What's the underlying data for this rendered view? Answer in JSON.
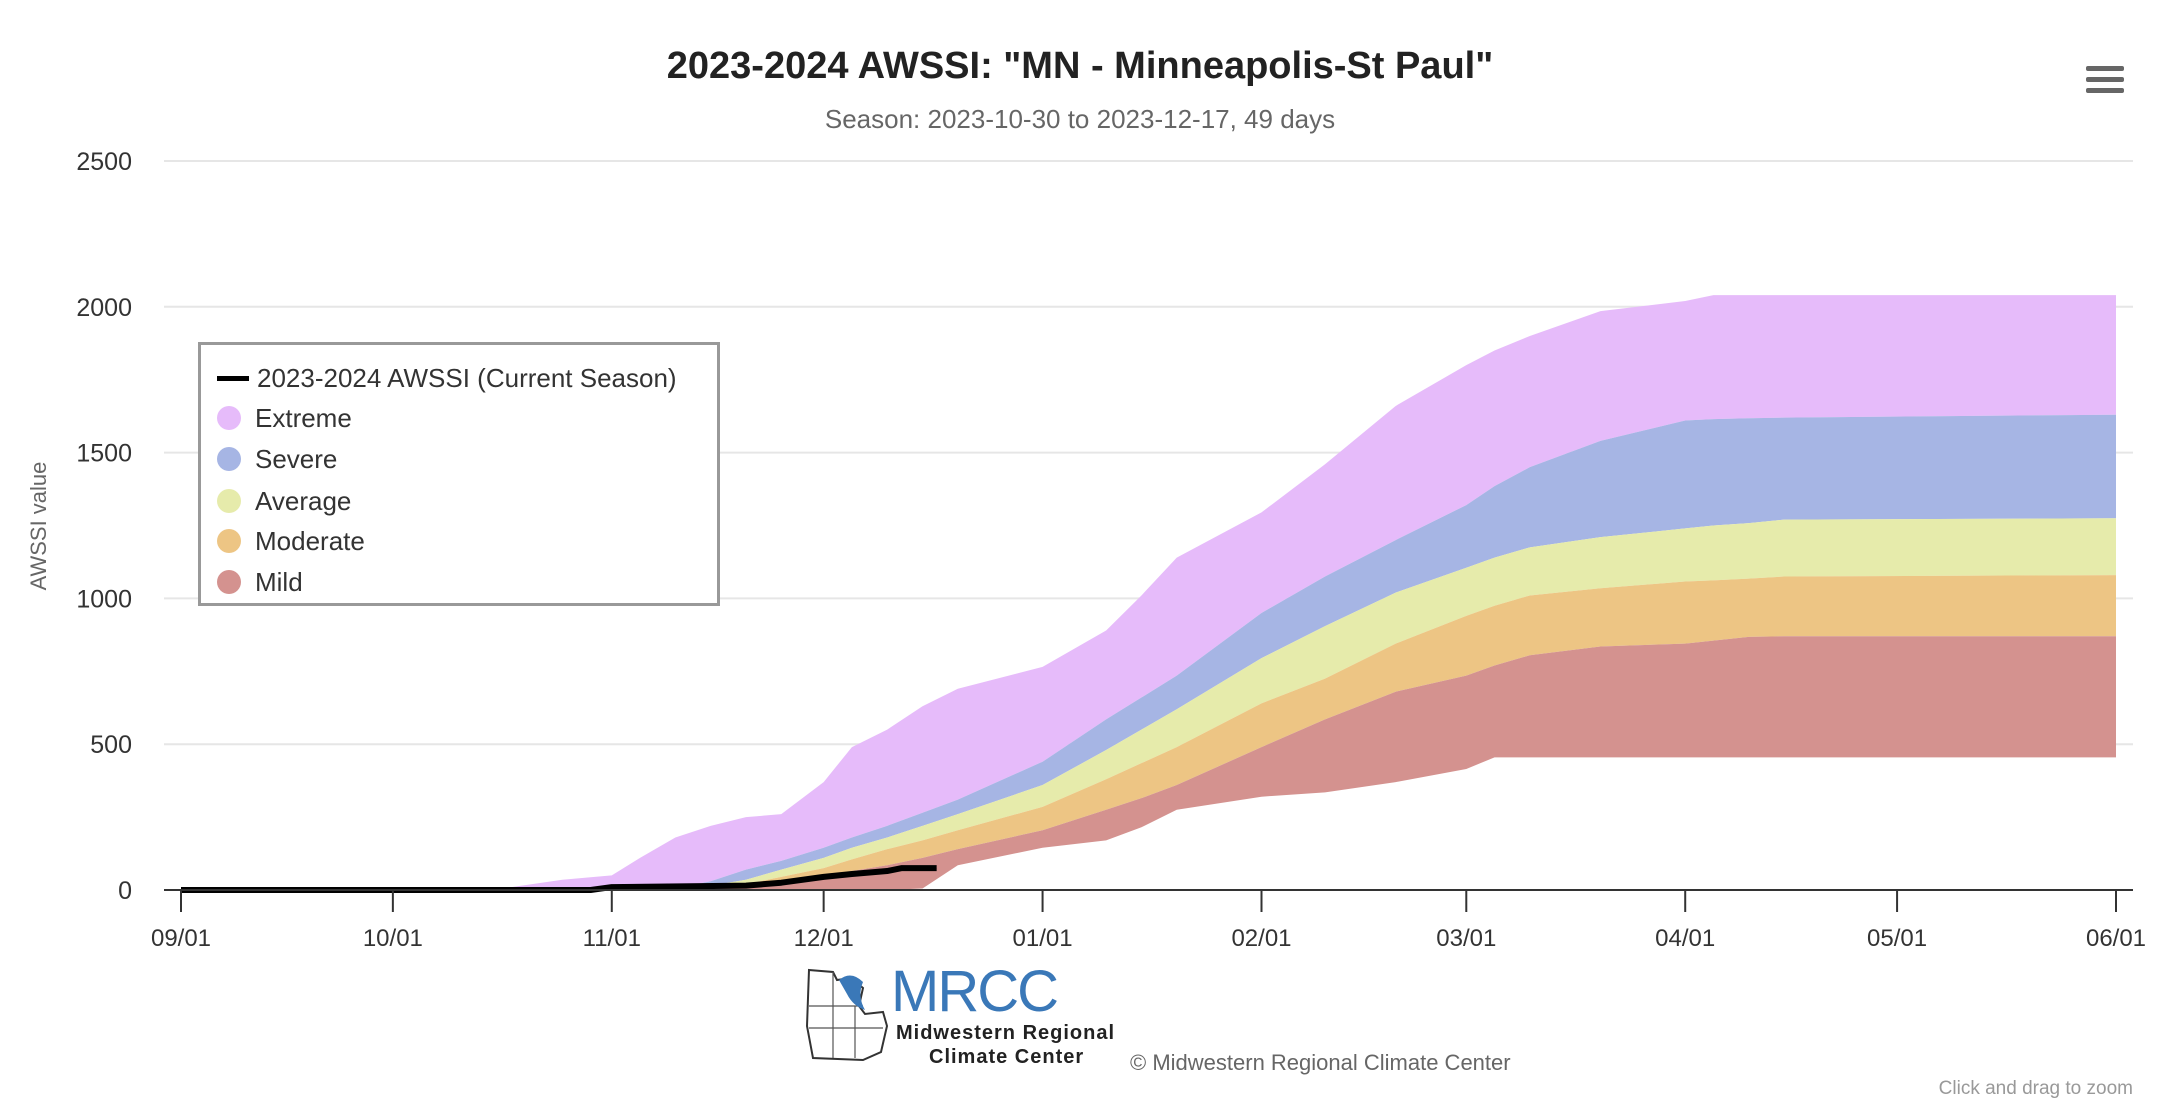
{
  "chart_data": {
    "type": "area",
    "title": "2023-2024 AWSSI: \"MN - Minneapolis-St Paul\"",
    "subtitle": "Season: 2023-10-30 to 2023-12-17, 49 days",
    "xlabel": "",
    "ylabel": "AWSSI value",
    "ylim": [
      0,
      2500
    ],
    "yticks": [
      "0",
      "500",
      "1000",
      "1500",
      "2000",
      "2500"
    ],
    "xlim": [
      "2023-09-01",
      "2024-06-01"
    ],
    "xticks": [
      {
        "date": "2023-09-01",
        "label": "09/01"
      },
      {
        "date": "2023-10-01",
        "label": "10/01"
      },
      {
        "date": "2023-11-01",
        "label": "11/01"
      },
      {
        "date": "2023-12-01",
        "label": "12/01"
      },
      {
        "date": "2024-01-01",
        "label": "01/01"
      },
      {
        "date": "2024-02-01",
        "label": "02/01"
      },
      {
        "date": "2024-03-01",
        "label": "03/01"
      },
      {
        "date": "2024-04-01",
        "label": "04/01"
      },
      {
        "date": "2024-05-01",
        "label": "05/01"
      },
      {
        "date": "2024-06-01",
        "label": "06/01"
      }
    ],
    "grid": true,
    "legend_position": "top-left",
    "band_dates": [
      "2023-09-01",
      "2023-10-15",
      "2023-10-25",
      "2023-11-01",
      "2023-11-05",
      "2023-11-10",
      "2023-11-15",
      "2023-11-20",
      "2023-11-25",
      "2023-12-01",
      "2023-12-05",
      "2023-12-10",
      "2023-12-15",
      "2023-12-20",
      "2024-01-01",
      "2024-01-10",
      "2024-01-15",
      "2024-01-20",
      "2024-02-01",
      "2024-02-10",
      "2024-02-20",
      "2024-03-01",
      "2024-03-05",
      "2024-03-10",
      "2024-03-20",
      "2024-04-01",
      "2024-04-05",
      "2024-04-10",
      "2024-04-15",
      "2024-06-01"
    ],
    "bands": [
      {
        "name": "Extreme",
        "color": "#e6bbfa",
        "low": [
          0,
          0,
          0,
          0,
          2,
          5,
          30,
          70,
          100,
          145,
          180,
          220,
          265,
          310,
          440,
          585,
          660,
          735,
          950,
          1075,
          1200,
          1320,
          1385,
          1450,
          1540,
          1610,
          1615,
          1618,
          1620,
          1630
        ],
        "high": [
          0,
          0,
          35,
          50,
          110,
          180,
          220,
          250,
          260,
          370,
          490,
          550,
          630,
          690,
          765,
          890,
          1010,
          1140,
          1295,
          1460,
          1660,
          1800,
          1850,
          1900,
          1985,
          2020,
          2040,
          2040,
          2040,
          2040
        ]
      },
      {
        "name": "Severe",
        "color": "#a6b5e4",
        "low": [
          0,
          0,
          0,
          0,
          0,
          3,
          15,
          35,
          70,
          110,
          145,
          180,
          220,
          260,
          360,
          480,
          550,
          620,
          795,
          905,
          1020,
          1105,
          1140,
          1175,
          1210,
          1240,
          1250,
          1258,
          1270,
          1275
        ],
        "high": [
          0,
          0,
          0,
          0,
          2,
          5,
          30,
          70,
          100,
          145,
          180,
          220,
          265,
          310,
          440,
          585,
          660,
          735,
          950,
          1075,
          1200,
          1320,
          1385,
          1450,
          1540,
          1610,
          1615,
          1618,
          1620,
          1630
        ]
      },
      {
        "name": "Average",
        "color": "#e6ebab",
        "low": [
          0,
          0,
          0,
          0,
          0,
          0,
          8,
          20,
          45,
          75,
          105,
          140,
          170,
          205,
          285,
          380,
          435,
          490,
          640,
          725,
          845,
          940,
          975,
          1010,
          1035,
          1058,
          1062,
          1068,
          1075,
          1080
        ],
        "high": [
          0,
          0,
          0,
          0,
          0,
          3,
          15,
          35,
          70,
          110,
          145,
          180,
          220,
          260,
          360,
          480,
          550,
          620,
          795,
          905,
          1020,
          1105,
          1140,
          1175,
          1210,
          1240,
          1250,
          1258,
          1270,
          1275
        ]
      },
      {
        "name": "Moderate",
        "color": "#edc584",
        "low": [
          0,
          0,
          0,
          0,
          0,
          0,
          3,
          10,
          25,
          45,
          65,
          85,
          110,
          140,
          205,
          275,
          315,
          360,
          490,
          585,
          680,
          735,
          770,
          805,
          835,
          845,
          855,
          868,
          870,
          870
        ],
        "high": [
          0,
          0,
          0,
          0,
          0,
          0,
          8,
          20,
          45,
          75,
          105,
          140,
          170,
          205,
          285,
          380,
          435,
          490,
          640,
          725,
          845,
          940,
          975,
          1010,
          1035,
          1058,
          1062,
          1068,
          1075,
          1080
        ]
      },
      {
        "name": "Mild",
        "color": "#d4928f",
        "low": [
          0,
          0,
          0,
          0,
          0,
          0,
          0,
          0,
          0,
          0,
          0,
          0,
          5,
          85,
          145,
          170,
          215,
          275,
          320,
          335,
          370,
          415,
          455,
          455,
          455,
          455,
          455,
          455,
          455,
          455
        ],
        "high": [
          0,
          0,
          0,
          0,
          0,
          0,
          3,
          10,
          25,
          45,
          65,
          85,
          110,
          140,
          205,
          275,
          315,
          360,
          490,
          585,
          680,
          735,
          770,
          805,
          835,
          845,
          855,
          868,
          870,
          870
        ]
      }
    ],
    "series": [
      {
        "name": "2023-2024 AWSSI (Current Season)",
        "color": "#000000",
        "dates": [
          "2023-09-01",
          "2023-10-29",
          "2023-11-01",
          "2023-11-20",
          "2023-11-25",
          "2023-12-01",
          "2023-12-05",
          "2023-12-10",
          "2023-12-12",
          "2023-12-17"
        ],
        "values": [
          0,
          0,
          10,
          15,
          25,
          45,
          55,
          65,
          75,
          75
        ]
      }
    ]
  },
  "legend": {
    "items": [
      {
        "label": "2023-2024 AWSSI (Current Season)",
        "type": "line",
        "color": "#000000"
      },
      {
        "label": "Extreme",
        "type": "dot",
        "color": "#e6bbfa"
      },
      {
        "label": "Severe",
        "type": "dot",
        "color": "#a6b5e4"
      },
      {
        "label": "Average",
        "type": "dot",
        "color": "#e6ebab"
      },
      {
        "label": "Moderate",
        "type": "dot",
        "color": "#edc584"
      },
      {
        "label": "Mild",
        "type": "dot",
        "color": "#d4928f"
      }
    ]
  },
  "menu_icon": "hamburger-menu-icon",
  "logo": {
    "mark": "MRCC",
    "line1": "Midwestern Regional",
    "line2": "Climate Center"
  },
  "credit": "© Midwestern Regional Climate Center",
  "hint": "Click and drag to zoom"
}
